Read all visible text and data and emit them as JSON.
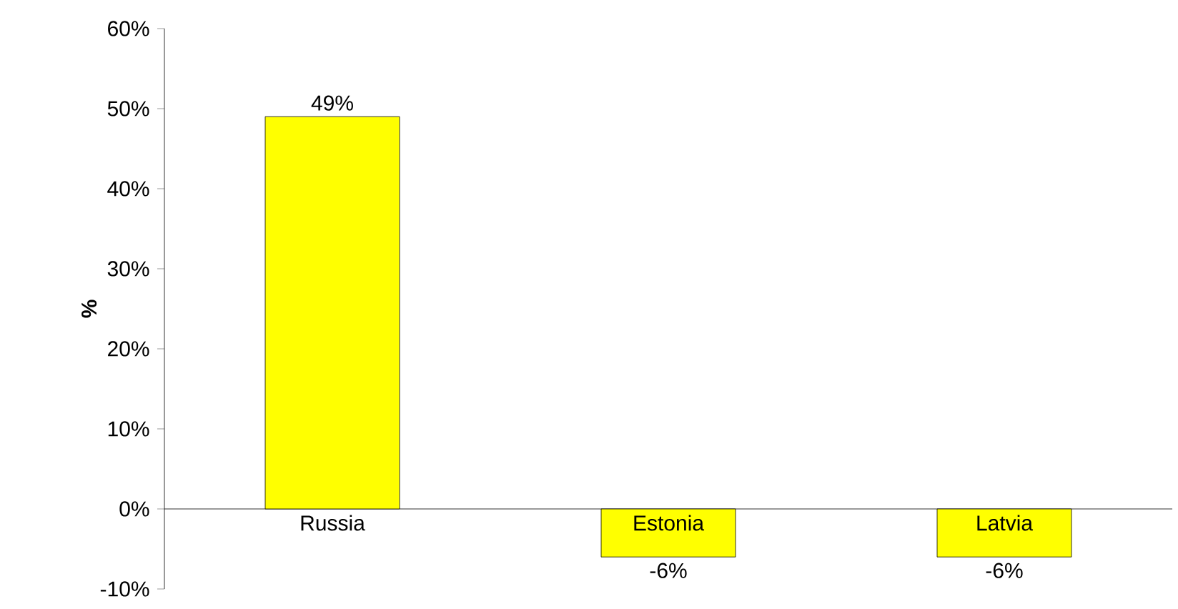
{
  "chart_data": {
    "type": "bar",
    "ylabel": "%",
    "categories": [
      "Russia",
      "Estonia",
      "Latvia"
    ],
    "values": [
      49,
      -6,
      -6
    ],
    "value_labels": [
      "49%",
      "-6%",
      "-6%"
    ],
    "color": "#ffff00",
    "ylim": [
      -10,
      60
    ],
    "yticks": [
      {
        "value": -10,
        "label": "-10%"
      },
      {
        "value": 0,
        "label": "0%"
      },
      {
        "value": 10,
        "label": "10%"
      },
      {
        "value": 20,
        "label": "20%"
      },
      {
        "value": 30,
        "label": "30%"
      },
      {
        "value": 40,
        "label": "40%"
      },
      {
        "value": 50,
        "label": "50%"
      },
      {
        "value": 60,
        "label": "60%"
      }
    ]
  }
}
